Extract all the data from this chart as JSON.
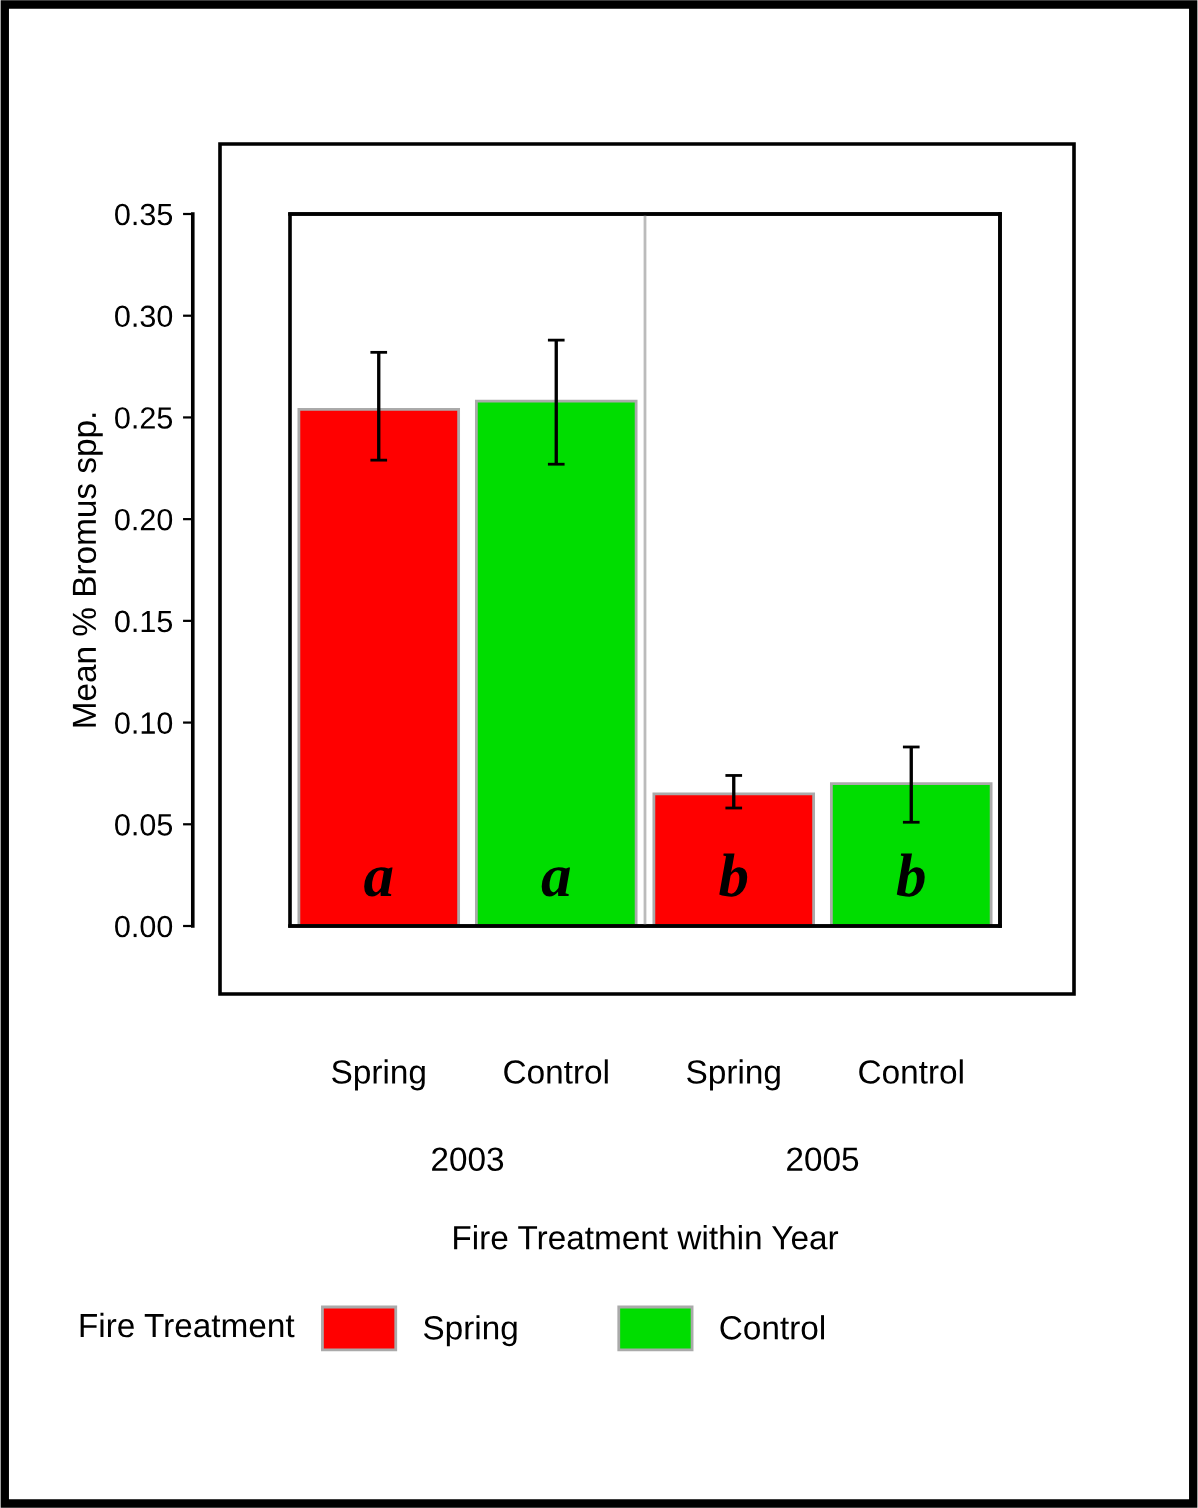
{
  "chart_data": {
    "type": "bar",
    "categories": [
      "Spring",
      "Control",
      "Spring",
      "Control"
    ],
    "series": [
      {
        "name": "Spring",
        "color": "#ff0000",
        "values": [
          0.254,
          null,
          0.065,
          null
        ],
        "errors": [
          [
            0.229,
            0.282
          ],
          null,
          [
            0.058,
            0.074
          ],
          null
        ]
      },
      {
        "name": "Control",
        "color": "#00dd00",
        "values": [
          null,
          0.258,
          null,
          0.07
        ],
        "errors": [
          null,
          [
            0.227,
            0.288
          ],
          null,
          [
            0.051,
            0.088
          ]
        ]
      }
    ],
    "ylabel": "Mean % Bromus spp.",
    "xlabel": "Fire Treatment within Year",
    "legend_title": "Fire Treatment",
    "ylim": [
      0,
      0.35
    ],
    "yticks": [
      {
        "value": 0,
        "label": "0.00"
      },
      {
        "value": 0.05,
        "label": "0.05"
      },
      {
        "value": 0.1,
        "label": "0.10"
      },
      {
        "value": 0.15,
        "label": "0.15"
      },
      {
        "value": 0.2,
        "label": "0.20"
      },
      {
        "value": 0.25,
        "label": "0.25"
      },
      {
        "value": 0.3,
        "label": "0.30"
      },
      {
        "value": 0.35,
        "label": "0.35"
      }
    ],
    "annotations": [
      "a",
      "a",
      "b",
      "b",
      "2003",
      "2005"
    ],
    "grid": false,
    "legend": "bottom"
  }
}
